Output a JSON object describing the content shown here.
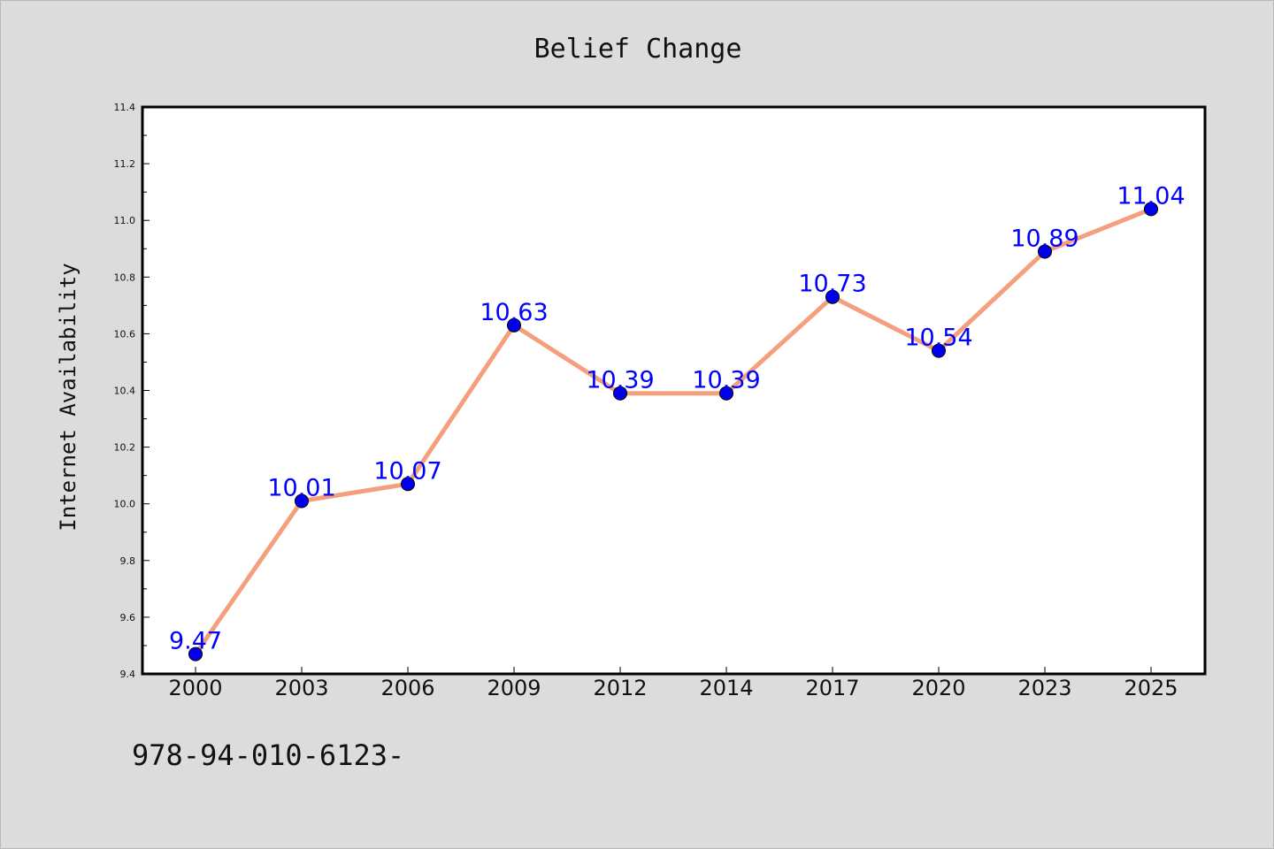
{
  "chart_data": {
    "type": "line",
    "title": "Belief Change",
    "xlabel": "",
    "ylabel": "Internet Availability",
    "categories": [
      "2000",
      "2003",
      "2006",
      "2009",
      "2012",
      "2014",
      "2017",
      "2020",
      "2023",
      "2025"
    ],
    "series": [
      {
        "values": [
          9.47,
          10.01,
          10.07,
          10.63,
          10.39,
          10.39,
          10.73,
          10.54,
          10.89,
          11.04
        ],
        "labels": [
          "9.47",
          "10.01",
          "10.07",
          "10.63",
          "10.39",
          "10.39",
          "10.73",
          "10.54",
          "10.89",
          "11.04"
        ],
        "line_color": "#f4a07e",
        "marker_color": "#0000ee",
        "label_color": "#0000ff"
      }
    ],
    "ylim": [
      9.4,
      11.4
    ],
    "yticks": [
      "9.4",
      "9.6",
      "9.8",
      "10.0",
      "10.2",
      "10.4",
      "10.6",
      "10.8",
      "11.0",
      "11.2",
      "11.4"
    ],
    "grid": false,
    "legend": "none"
  },
  "footer": {
    "isbn": "978-94-010-6123-"
  },
  "colors": {
    "background": "#dcdcdc",
    "plot_area": "#ffffff",
    "axis": "#000000"
  }
}
